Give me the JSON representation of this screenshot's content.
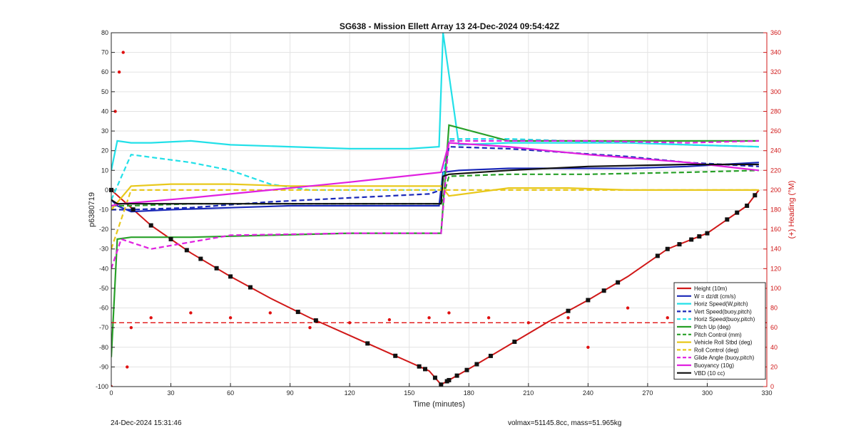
{
  "footer": {
    "left": "24-Dec-2024 15:31:46",
    "right": "volmax=51145.8cc, mass=51.965kg"
  },
  "chart_data": {
    "type": "line",
    "title": "SG638 - Mission Ellett Array 13 24-Dec-2024 09:54:42Z",
    "xlabel": "Time (minutes)",
    "ylabel": "p6380719",
    "ylabel_right": "(+) Heading (°M)",
    "xlim": [
      0,
      330
    ],
    "ylim": [
      -100,
      80
    ],
    "ylim_right": [
      0,
      360
    ],
    "x_ticks": [
      0,
      30,
      60,
      90,
      120,
      150,
      180,
      210,
      240,
      270,
      300,
      330
    ],
    "y_ticks": [
      -100,
      -90,
      -80,
      -70,
      -60,
      -50,
      -40,
      -30,
      -20,
      -10,
      0,
      10,
      20,
      30,
      40,
      50,
      60,
      70,
      80
    ],
    "y_ticks_right": [
      0,
      20,
      40,
      60,
      80,
      100,
      120,
      140,
      160,
      180,
      200,
      220,
      240,
      260,
      280,
      300,
      320,
      340,
      360
    ],
    "grid": true,
    "legend_position": "bottom-right",
    "colors": {
      "height": "#d01818",
      "w": "#1a28b8",
      "horiz": "#22e0e8",
      "pitch": "#28a028",
      "roll": "#e8c81c",
      "glide": "#e020e0",
      "buoy": "#e020e0",
      "vbd": "#111111",
      "heading": "#e01010"
    },
    "series": [
      {
        "name": "Height (10m)",
        "color": "#d01818",
        "style": "solid",
        "x": [
          0,
          20,
          40,
          60,
          80,
          100,
          120,
          140,
          160,
          166,
          180,
          200,
          220,
          240,
          260,
          280,
          300,
          320,
          326
        ],
        "values": [
          0,
          -18,
          -32,
          -44,
          -55,
          -65,
          -74,
          -83,
          -92,
          -99,
          -91,
          -79,
          -67,
          -56,
          -44,
          -30,
          -22,
          -8,
          0
        ]
      },
      {
        "name": "W = dz/dt (cm/s)",
        "color": "#1a28b8",
        "style": "solid",
        "x": [
          0,
          3,
          10,
          30,
          60,
          90,
          120,
          150,
          165,
          167,
          175,
          200,
          230,
          260,
          290,
          326
        ],
        "values": [
          -5,
          -8,
          -11,
          -10,
          -9,
          -8,
          -8,
          -8,
          -8,
          9,
          10,
          11,
          11,
          11,
          12,
          14
        ]
      },
      {
        "name": "Horiz Speed(W,pitch)",
        "color": "#22e0e8",
        "style": "solid",
        "x": [
          0,
          3,
          10,
          20,
          40,
          60,
          90,
          120,
          150,
          165,
          167,
          175,
          200,
          230,
          260,
          290,
          326
        ],
        "values": [
          10,
          25,
          24,
          24,
          25,
          23,
          22,
          21,
          21,
          22,
          80,
          23,
          24,
          24,
          24,
          23,
          22
        ]
      },
      {
        "name": "Vert Speed(buoy,pitch)",
        "color": "#1a28b8",
        "style": "dashed",
        "x": [
          0,
          10,
          40,
          80,
          120,
          160,
          166,
          170,
          200,
          230,
          260,
          290,
          326
        ],
        "values": [
          -10,
          -10,
          -9,
          -6,
          -4,
          -2,
          0,
          22,
          21,
          19,
          17,
          14,
          12
        ]
      },
      {
        "name": "Horiz Speed(buoy,pitch)",
        "color": "#22e0e8",
        "style": "dashed",
        "x": [
          0,
          10,
          40,
          60,
          80,
          100,
          166,
          170,
          200,
          230,
          260,
          290,
          326
        ],
        "values": [
          -5,
          18,
          14,
          10,
          3,
          0,
          0,
          26,
          26,
          25,
          24,
          23,
          22
        ]
      },
      {
        "name": "Pitch Up (deg)",
        "color": "#28a028",
        "style": "solid",
        "x": [
          0,
          3,
          10,
          40,
          80,
          120,
          160,
          166,
          170,
          200,
          240,
          290,
          326
        ],
        "values": [
          -85,
          -25,
          -24,
          -24,
          -23,
          -22,
          -22,
          -22,
          33,
          25,
          25,
          25,
          25
        ]
      },
      {
        "name": "Pitch Control (mm)",
        "color": "#28a028",
        "style": "dashed",
        "x": [
          0,
          10,
          40,
          80,
          120,
          166,
          170,
          200,
          240,
          290,
          326
        ],
        "values": [
          -8,
          -8,
          -7,
          -7,
          -7,
          -7,
          7,
          8,
          8,
          9,
          10
        ]
      },
      {
        "name": "Vehicle Roll Stbd (deg)",
        "color": "#e8c81c",
        "style": "solid",
        "x": [
          0,
          10,
          30,
          60,
          90,
          120,
          150,
          166,
          170,
          200,
          230,
          260,
          290,
          326
        ],
        "values": [
          -10,
          2,
          3,
          3,
          2,
          2,
          2,
          2,
          -3,
          1,
          1,
          0,
          0,
          0
        ]
      },
      {
        "name": "Roll Control (deg)",
        "color": "#e8c81c",
        "style": "dashed",
        "x": [
          0,
          10,
          60,
          120,
          166,
          170,
          230,
          290,
          326
        ],
        "values": [
          -30,
          0,
          0,
          0,
          0,
          0,
          0,
          0,
          0
        ]
      },
      {
        "name": "Glide Angle (buoy,pitch)",
        "color": "#e020e0",
        "style": "dashed",
        "x": [
          0,
          5,
          20,
          60,
          120,
          166,
          170,
          200,
          240,
          290,
          326
        ],
        "values": [
          -40,
          -25,
          -30,
          -23,
          -22,
          -22,
          25,
          25,
          25,
          24,
          25
        ]
      },
      {
        "name": "Buoyancy (10g)",
        "color": "#e020e0",
        "style": "solid",
        "x": [
          0,
          5,
          40,
          80,
          120,
          166,
          170,
          200,
          240,
          290,
          326
        ],
        "values": [
          -8,
          -7,
          -4,
          0,
          4,
          9,
          24,
          22,
          18,
          14,
          10
        ]
      },
      {
        "name": "VBD (10 cc)",
        "color": "#111111",
        "style": "solid",
        "x": [
          0,
          3,
          166,
          167,
          170,
          200,
          240,
          290,
          326
        ],
        "values": [
          -5,
          -7,
          -7,
          7,
          8,
          10,
          12,
          13,
          13
        ]
      }
    ],
    "heading_series": {
      "name": "Heading",
      "color": "#e01010",
      "x": [
        0,
        2,
        4,
        6,
        8,
        10,
        20,
        40,
        60,
        80,
        100,
        120,
        140,
        160,
        170,
        190,
        210,
        230,
        240,
        260,
        280,
        300,
        320,
        326
      ],
      "values": [
        0,
        280,
        320,
        340,
        20,
        60,
        70,
        75,
        70,
        75,
        60,
        65,
        68,
        70,
        75,
        70,
        65,
        70,
        40,
        80,
        70,
        60,
        65,
        95
      ]
    },
    "heading_reference": 65,
    "height_markers_x": [
      0,
      11,
      20,
      30,
      38,
      45,
      53,
      60,
      70,
      94,
      103,
      129,
      143,
      155,
      158,
      163,
      166,
      169,
      170,
      174,
      179,
      184,
      191,
      203,
      230,
      240,
      248,
      255,
      275,
      280,
      286,
      292,
      296,
      300,
      310,
      315,
      320,
      324
    ]
  }
}
